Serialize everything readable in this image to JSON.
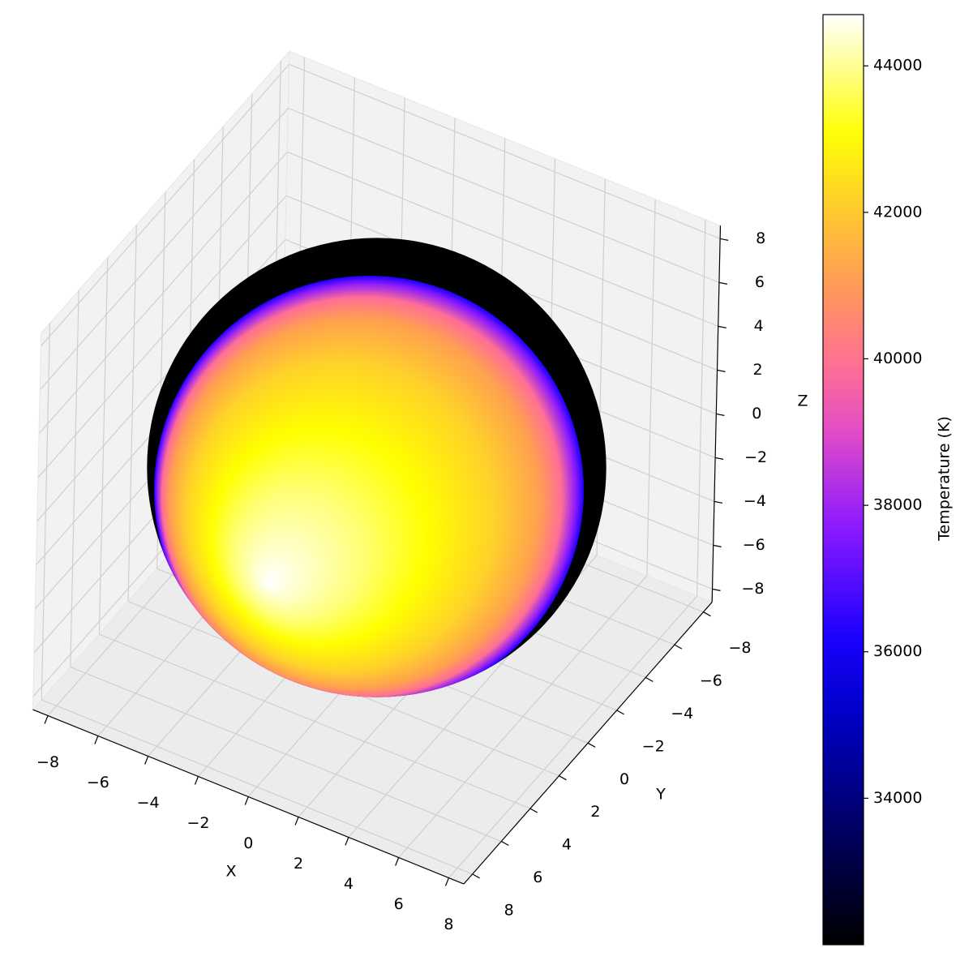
{
  "chart_data": {
    "type": "surface3d",
    "shape": "sphere",
    "radius": 8,
    "colormap": "gnuplot2",
    "xlabel": "X",
    "ylabel": "Y",
    "zlabel": "Z",
    "colorbar_label": "Temperature (K)",
    "xlim": [
      -8.6,
      8.6
    ],
    "ylim": [
      -8.6,
      8.6
    ],
    "zlim": [
      -8.6,
      8.6
    ],
    "xticks": [
      {
        "value": -8,
        "label": "−8"
      },
      {
        "value": -6,
        "label": "−6"
      },
      {
        "value": -4,
        "label": "−4"
      },
      {
        "value": -2,
        "label": "−2"
      },
      0,
      2,
      4,
      6,
      8
    ],
    "yticks": [
      {
        "value": -8,
        "label": "−8"
      },
      {
        "value": -6,
        "label": "−6"
      },
      {
        "value": -4,
        "label": "−4"
      },
      {
        "value": -2,
        "label": "−2"
      },
      0,
      2,
      4,
      6,
      8
    ],
    "zticks": [
      {
        "value": -8,
        "label": "−8"
      },
      {
        "value": -6,
        "label": "−6"
      },
      {
        "value": -4,
        "label": "−4"
      },
      {
        "value": -2,
        "label": "−2"
      },
      0,
      2,
      4,
      6,
      8
    ],
    "clim": [
      32000,
      44700
    ],
    "cticks": [
      34000,
      36000,
      38000,
      40000,
      42000,
      44000
    ]
  }
}
